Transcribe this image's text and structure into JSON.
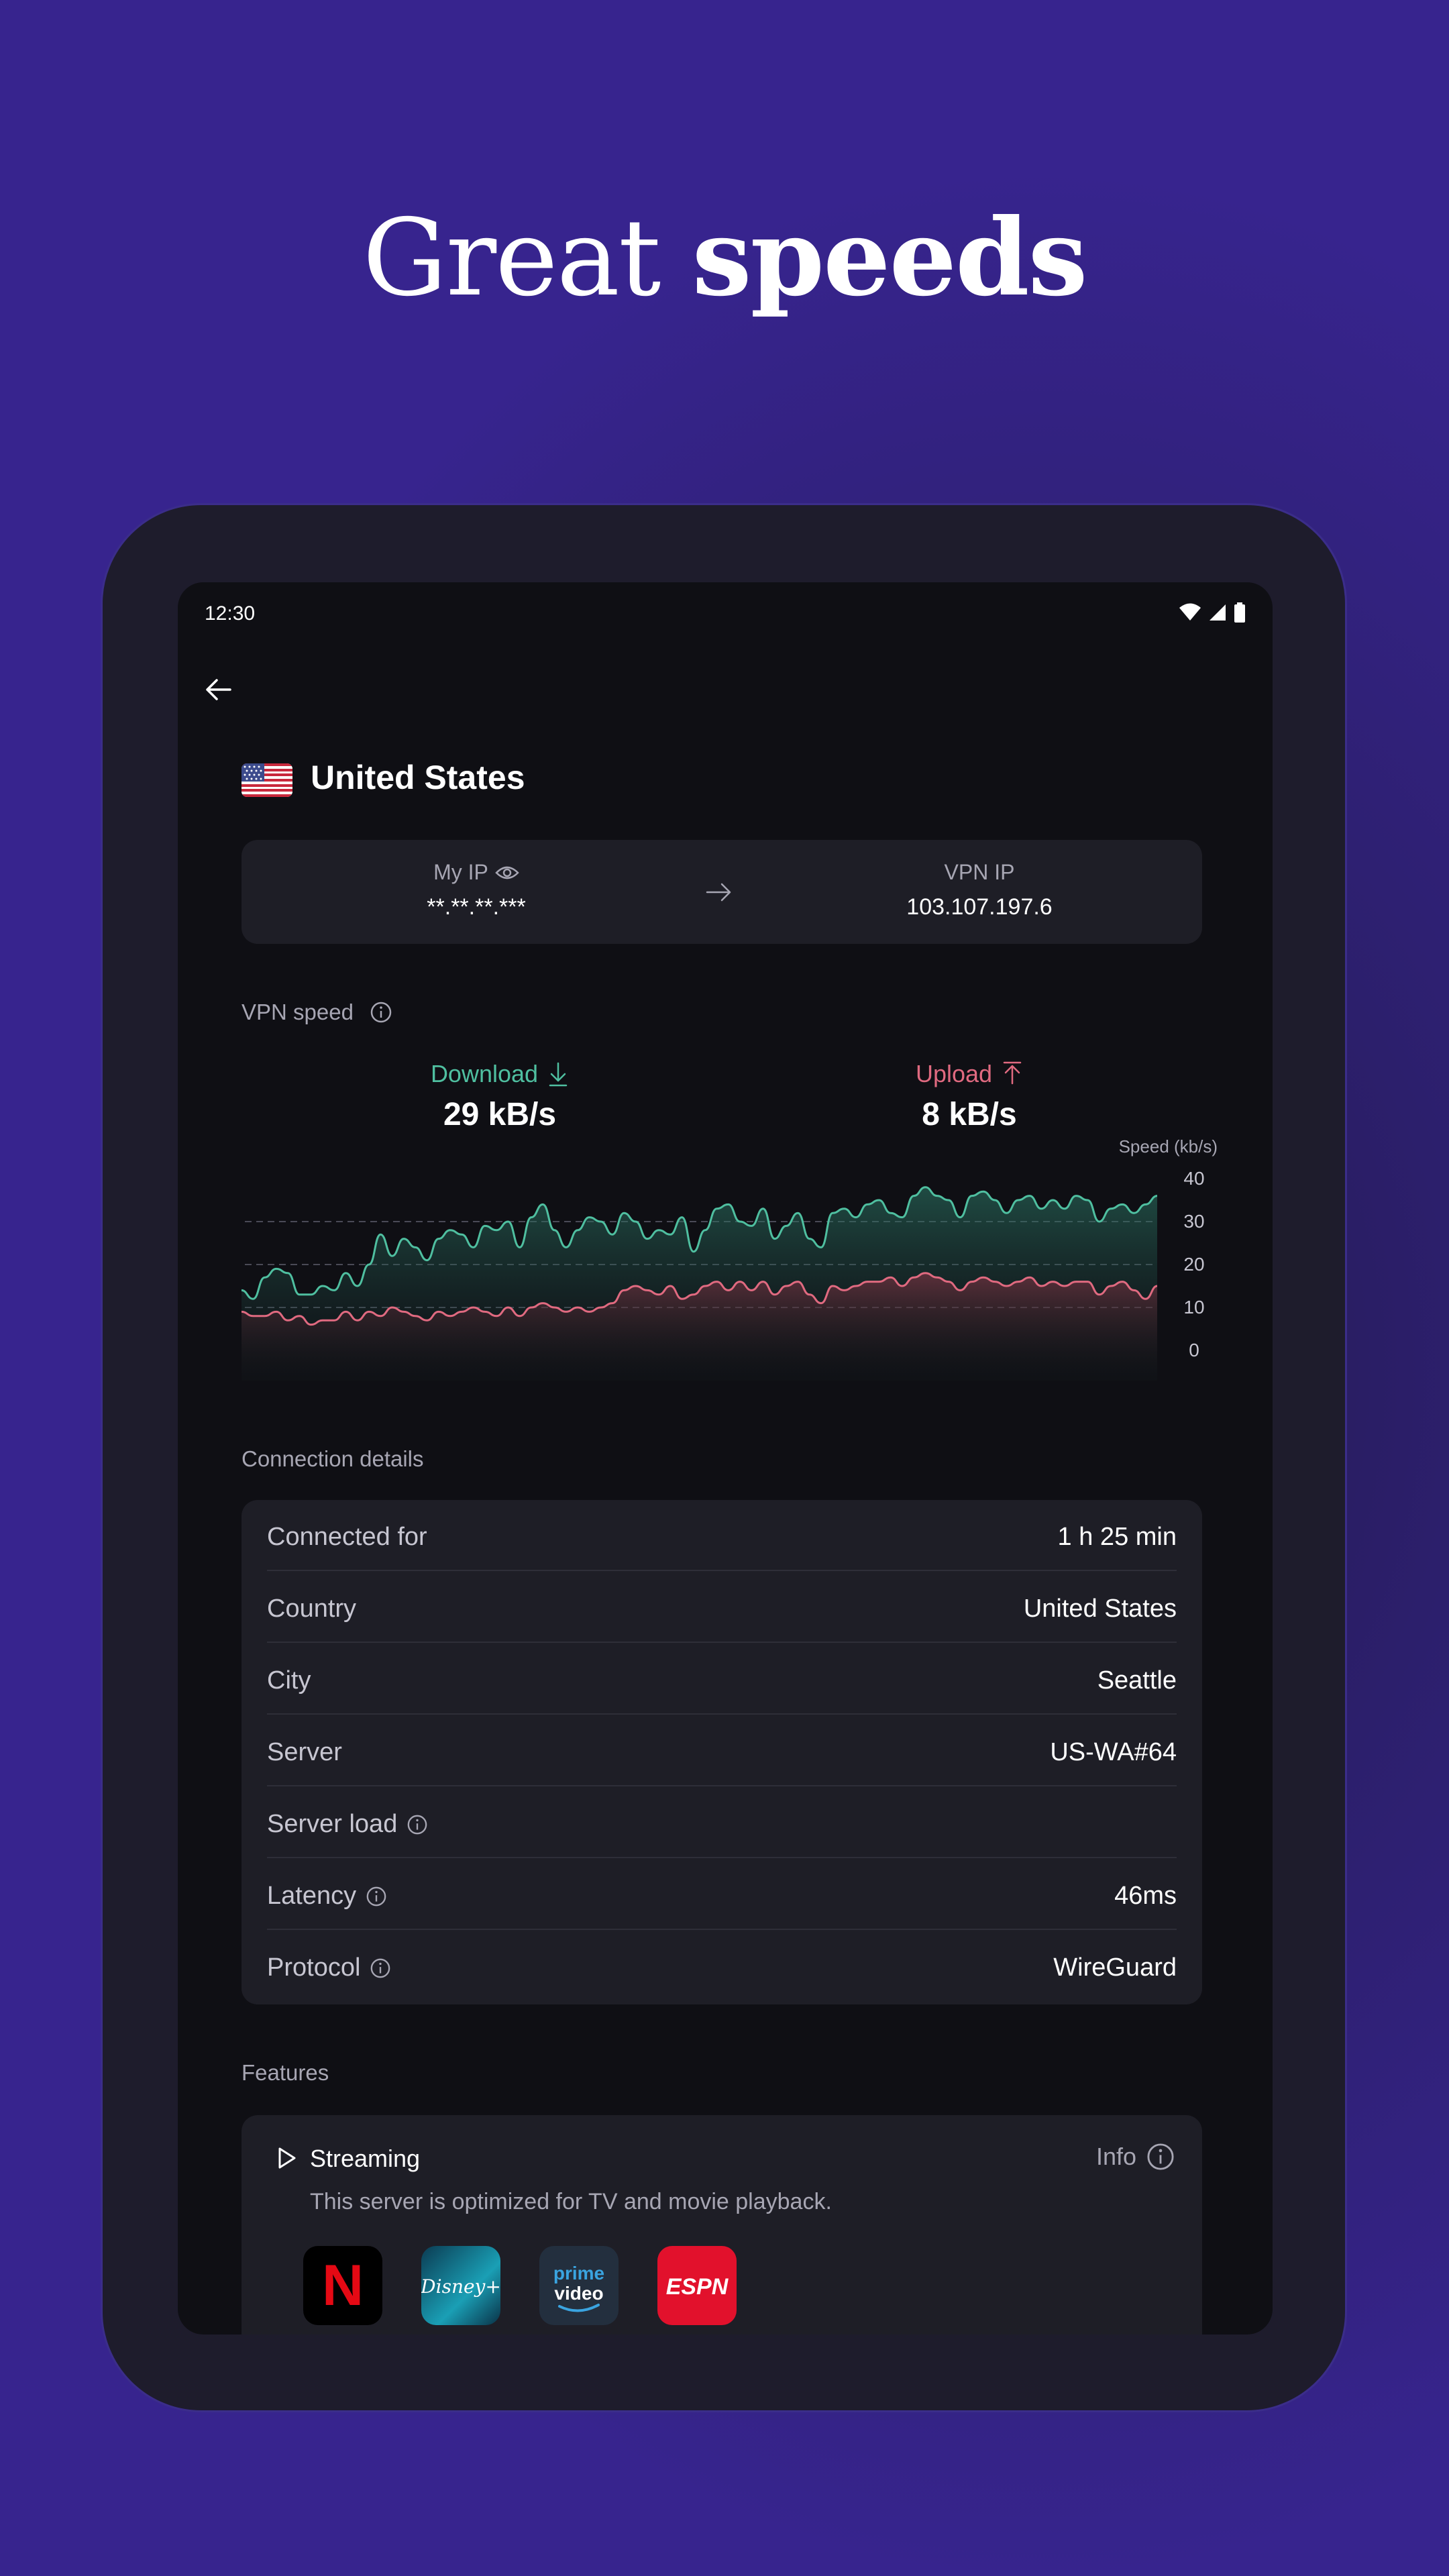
{
  "headline": {
    "light": "Great ",
    "bold": "speeds"
  },
  "status_bar": {
    "time": "12:30"
  },
  "server": {
    "country": "United States"
  },
  "ip_card": {
    "my_ip_label": "My IP",
    "my_ip_value": "**.**.**.***",
    "vpn_ip_label": "VPN IP",
    "vpn_ip_value": "103.107.197.6"
  },
  "vpn_speed": {
    "section_label": "VPN speed",
    "download_label": "Download",
    "download_value": "29 kB/s",
    "upload_label": "Upload",
    "upload_value": "8 kB/s"
  },
  "chart_data": {
    "type": "area",
    "y_axis_title": "Speed (kb/s)",
    "y_ticks": [
      "40",
      "30",
      "20",
      "10",
      "0"
    ],
    "ylim": [
      0,
      45
    ],
    "y_axis_position": "right",
    "gridlines_at": [
      10,
      20,
      30
    ],
    "series": [
      {
        "name": "Download",
        "color": "#4fbfa0",
        "values": [
          14,
          12,
          17,
          19,
          18,
          13,
          13,
          15,
          14,
          18,
          15,
          20,
          27,
          22,
          26,
          24,
          21,
          26,
          28,
          27,
          24,
          29,
          28,
          30,
          24,
          31,
          34,
          28,
          24,
          28,
          31,
          30,
          27,
          32,
          30,
          26,
          28,
          27,
          31,
          23,
          28,
          33,
          34,
          30,
          29,
          33,
          26,
          29,
          32,
          26,
          24,
          32,
          33,
          31,
          34,
          35,
          32,
          31,
          36,
          38,
          36,
          35,
          31,
          36,
          37,
          35,
          32,
          35,
          36,
          33,
          35,
          33,
          36,
          35,
          30,
          33,
          34,
          32,
          34,
          36
        ]
      },
      {
        "name": "Upload",
        "color": "#e06a80",
        "values": [
          9,
          8,
          8,
          9,
          7,
          8,
          6,
          7,
          7,
          9,
          7,
          9,
          8,
          10,
          9,
          8,
          7,
          9,
          8,
          9,
          10,
          9,
          8,
          10,
          8,
          10,
          11,
          10,
          9,
          10,
          9,
          10,
          11,
          14,
          15,
          14,
          13,
          15,
          12,
          13,
          15,
          16,
          14,
          16,
          14,
          16,
          13,
          15,
          16,
          13,
          11,
          15,
          14,
          15,
          16,
          16,
          17,
          15,
          17,
          18,
          17,
          16,
          14,
          16,
          17,
          16,
          15,
          16,
          17,
          15,
          16,
          15,
          16,
          16,
          13,
          15,
          16,
          14,
          12,
          15
        ]
      }
    ]
  },
  "connection_details": {
    "section_label": "Connection details",
    "rows": [
      {
        "label": "Connected for",
        "value": "1 h 25 min"
      },
      {
        "label": "Country",
        "value": "United States"
      },
      {
        "label": "City",
        "value": "Seattle"
      },
      {
        "label": "Server",
        "value": "US-WA#64"
      },
      {
        "label": "Server load",
        "value": ""
      },
      {
        "label": "Latency",
        "value": "46ms"
      },
      {
        "label": "Protocol",
        "value": "WireGuard"
      }
    ]
  },
  "features": {
    "section_label": "Features",
    "streaming_title": "Streaming",
    "streaming_description": "This server is optimized for TV and movie playback.",
    "info_label": "Info",
    "apps": [
      {
        "name": "netflix",
        "glyph": "N"
      },
      {
        "name": "disney-plus",
        "glyph": "Disney+"
      },
      {
        "name": "prime-video",
        "glyph_top": "prime",
        "glyph_bottom": "video"
      },
      {
        "name": "espn",
        "glyph": "ESPN"
      }
    ]
  },
  "colors": {
    "download": "#4fbfa0",
    "upload": "#e06a80",
    "background": "#36238c",
    "surface": "#1e1e26"
  }
}
